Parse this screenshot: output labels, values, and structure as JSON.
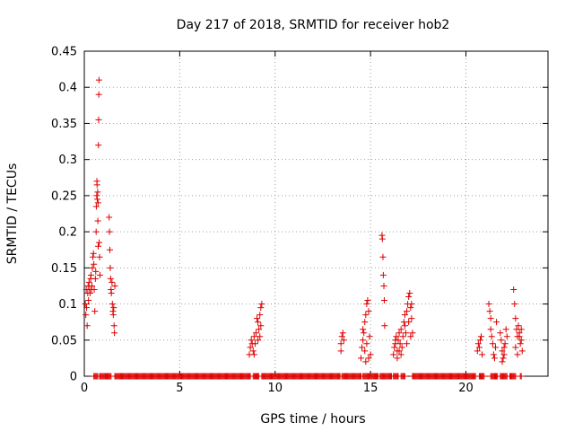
{
  "chart_data": {
    "type": "scatter",
    "title": "Day 217 of 2018, SRMTID for receiver hob2",
    "xlabel": "GPS time / hours",
    "ylabel": "SRMTID / TECUs",
    "xlim": [
      0,
      24.3
    ],
    "ylim": [
      0,
      0.45
    ],
    "xticks": [
      0,
      5,
      10,
      15,
      20
    ],
    "yticks": [
      0,
      0.05,
      0.1,
      0.15,
      0.2,
      0.25,
      0.3,
      0.35,
      0.4,
      0.45
    ],
    "ytick_labels": [
      "0",
      "0.05",
      "0.1",
      "0.15",
      "0.2",
      "0.25",
      "0.3",
      "0.35",
      "0.4",
      "0.45"
    ],
    "grid": true,
    "marker": "+",
    "color": "#dd0000",
    "series": [
      {
        "name": "SRMTID",
        "points": [
          [
            0.05,
            0.1
          ],
          [
            0.08,
            0.085
          ],
          [
            0.1,
            0.12
          ],
          [
            0.12,
            0.095
          ],
          [
            0.15,
            0.07
          ],
          [
            0.18,
            0.115
          ],
          [
            0.2,
            0.125
          ],
          [
            0.22,
            0.105
          ],
          [
            0.25,
            0.13
          ],
          [
            0.28,
            0.12
          ],
          [
            0.3,
            0.115
          ],
          [
            0.33,
            0.135
          ],
          [
            0.35,
            0.14
          ],
          [
            0.38,
            0.12
          ],
          [
            0.4,
            0.125
          ],
          [
            0.42,
            0.15
          ],
          [
            0.45,
            0.165
          ],
          [
            0.48,
            0.17
          ],
          [
            0.5,
            0.155
          ],
          [
            0.52,
            0.12
          ],
          [
            0.55,
            0.09
          ],
          [
            0.58,
            0.135
          ],
          [
            0.6,
            0.145
          ],
          [
            0.62,
            0.2
          ],
          [
            0.63,
            0.235
          ],
          [
            0.65,
            0.25
          ],
          [
            0.66,
            0.27
          ],
          [
            0.67,
            0.265
          ],
          [
            0.68,
            0.245
          ],
          [
            0.7,
            0.255
          ],
          [
            0.71,
            0.215
          ],
          [
            0.72,
            0.24
          ],
          [
            0.73,
            0.18
          ],
          [
            0.74,
            0.32
          ],
          [
            0.75,
            0.355
          ],
          [
            0.76,
            0.39
          ],
          [
            0.77,
            0.41
          ],
          [
            0.78,
            0.185
          ],
          [
            0.8,
            0.165
          ],
          [
            0.82,
            0.14
          ],
          [
            1.3,
            0.22
          ],
          [
            1.32,
            0.2
          ],
          [
            1.34,
            0.175
          ],
          [
            1.36,
            0.15
          ],
          [
            1.38,
            0.135
          ],
          [
            1.4,
            0.12
          ],
          [
            1.42,
            0.115
          ],
          [
            1.45,
            0.13
          ],
          [
            1.47,
            0.1
          ],
          [
            1.5,
            0.09
          ],
          [
            1.52,
            0.085
          ],
          [
            1.54,
            0.095
          ],
          [
            1.56,
            0.07
          ],
          [
            1.58,
            0.06
          ],
          [
            1.6,
            0.125
          ],
          [
            8.65,
            0.03
          ],
          [
            8.7,
            0.04
          ],
          [
            8.75,
            0.05
          ],
          [
            8.8,
            0.045
          ],
          [
            8.85,
            0.035
          ],
          [
            8.9,
            0.055
          ],
          [
            8.95,
            0.045
          ],
          [
            9.0,
            0.06
          ],
          [
            9.05,
            0.08
          ],
          [
            9.1,
            0.075
          ],
          [
            9.15,
            0.065
          ],
          [
            9.2,
            0.085
          ],
          [
            9.25,
            0.095
          ],
          [
            9.3,
            0.1
          ],
          [
            9.1,
            0.05
          ],
          [
            9.2,
            0.055
          ],
          [
            9.25,
            0.07
          ],
          [
            8.9,
            0.03
          ],
          [
            13.45,
            0.045
          ],
          [
            13.5,
            0.055
          ],
          [
            13.55,
            0.06
          ],
          [
            13.6,
            0.05
          ],
          [
            13.45,
            0.035
          ],
          [
            14.5,
            0.025
          ],
          [
            14.55,
            0.04
          ],
          [
            14.6,
            0.05
          ],
          [
            14.65,
            0.06
          ],
          [
            14.7,
            0.075
          ],
          [
            14.75,
            0.085
          ],
          [
            14.8,
            0.1
          ],
          [
            14.85,
            0.105
          ],
          [
            14.9,
            0.09
          ],
          [
            14.95,
            0.055
          ],
          [
            14.7,
            0.035
          ],
          [
            14.8,
            0.045
          ],
          [
            14.9,
            0.025
          ],
          [
            15.0,
            0.03
          ],
          [
            14.6,
            0.065
          ],
          [
            14.75,
            0.02
          ],
          [
            15.6,
            0.195
          ],
          [
            15.62,
            0.19
          ],
          [
            15.65,
            0.165
          ],
          [
            15.67,
            0.14
          ],
          [
            15.7,
            0.125
          ],
          [
            15.72,
            0.105
          ],
          [
            15.74,
            0.07
          ],
          [
            16.2,
            0.03
          ],
          [
            16.25,
            0.04
          ],
          [
            16.3,
            0.045
          ],
          [
            16.35,
            0.055
          ],
          [
            16.4,
            0.035
          ],
          [
            16.45,
            0.05
          ],
          [
            16.5,
            0.06
          ],
          [
            16.55,
            0.045
          ],
          [
            16.6,
            0.065
          ],
          [
            16.65,
            0.04
          ],
          [
            16.7,
            0.055
          ],
          [
            16.75,
            0.075
          ],
          [
            16.8,
            0.085
          ],
          [
            16.85,
            0.06
          ],
          [
            16.9,
            0.09
          ],
          [
            16.95,
            0.1
          ],
          [
            17.0,
            0.11
          ],
          [
            17.05,
            0.115
          ],
          [
            17.1,
            0.095
          ],
          [
            17.15,
            0.08
          ],
          [
            17.2,
            0.06
          ],
          [
            16.4,
            0.025
          ],
          [
            16.6,
            0.03
          ],
          [
            16.8,
            0.07
          ],
          [
            17.0,
            0.075
          ],
          [
            17.1,
            0.055
          ],
          [
            16.3,
            0.05
          ],
          [
            16.5,
            0.035
          ],
          [
            16.9,
            0.045
          ],
          [
            17.15,
            0.1
          ],
          [
            20.6,
            0.035
          ],
          [
            20.65,
            0.045
          ],
          [
            20.7,
            0.04
          ],
          [
            20.75,
            0.05
          ],
          [
            20.8,
            0.055
          ],
          [
            20.85,
            0.03
          ],
          [
            21.2,
            0.1
          ],
          [
            21.25,
            0.09
          ],
          [
            21.3,
            0.065
          ],
          [
            21.35,
            0.055
          ],
          [
            21.4,
            0.045
          ],
          [
            21.45,
            0.03
          ],
          [
            21.5,
            0.025
          ],
          [
            21.55,
            0.04
          ],
          [
            21.6,
            0.075
          ],
          [
            21.3,
            0.08
          ],
          [
            21.8,
            0.06
          ],
          [
            21.85,
            0.05
          ],
          [
            21.9,
            0.035
          ],
          [
            21.95,
            0.025
          ],
          [
            22.0,
            0.03
          ],
          [
            22.05,
            0.045
          ],
          [
            22.1,
            0.065
          ],
          [
            22.15,
            0.055
          ],
          [
            21.9,
            0.02
          ],
          [
            22.0,
            0.04
          ],
          [
            22.5,
            0.12
          ],
          [
            22.55,
            0.1
          ],
          [
            22.6,
            0.08
          ],
          [
            22.65,
            0.065
          ],
          [
            22.7,
            0.055
          ],
          [
            22.75,
            0.07
          ],
          [
            22.8,
            0.06
          ],
          [
            22.85,
            0.045
          ],
          [
            22.9,
            0.05
          ],
          [
            22.95,
            0.035
          ],
          [
            22.6,
            0.04
          ],
          [
            22.7,
            0.03
          ],
          [
            22.8,
            0.055
          ],
          [
            22.9,
            0.065
          ]
        ]
      }
    ],
    "baseline_runs": [
      [
        0.5,
        0.7
      ],
      [
        0.8,
        1.4
      ],
      [
        1.6,
        8.7
      ],
      [
        8.85,
        9.15
      ],
      [
        9.3,
        13.4
      ],
      [
        13.5,
        14.5
      ],
      [
        14.6,
        15.4
      ],
      [
        15.5,
        16.1
      ],
      [
        16.2,
        16.45
      ],
      [
        16.6,
        16.8
      ],
      [
        17.2,
        20.5
      ],
      [
        20.7,
        20.95
      ],
      [
        21.3,
        21.65
      ],
      [
        21.8,
        22.15
      ],
      [
        22.3,
        22.6
      ],
      [
        22.85,
        22.9
      ]
    ]
  }
}
